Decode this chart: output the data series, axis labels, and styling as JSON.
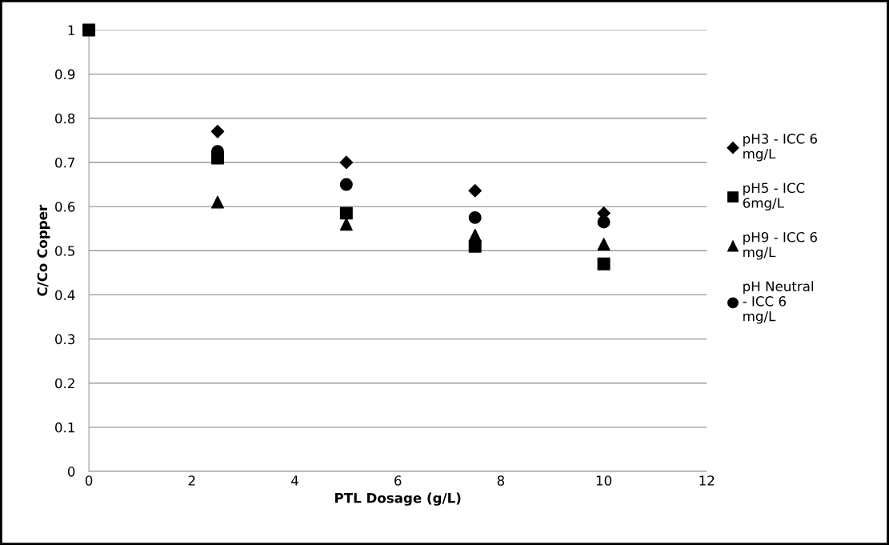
{
  "chart_data": {
    "type": "scatter",
    "xlabel": "PTL Dosage (g/L)",
    "ylabel": "C/Co Copper",
    "x": [
      0,
      2.5,
      5,
      7.5,
      10
    ],
    "series": [
      {
        "name": "pH3 - ICC 6 mg/L",
        "color": "#000000",
        "marker": "diamond",
        "values": [
          null,
          0.77,
          0.7,
          0.636,
          0.585
        ]
      },
      {
        "name": "pH5 - ICC 6mg/L",
        "color": "#000000",
        "marker": "square",
        "values": [
          1,
          0.71,
          0.585,
          0.51,
          0.47
        ]
      },
      {
        "name": "pH9 - ICC 6 mg/L",
        "color": "#000000",
        "marker": "triangle",
        "values": [
          null,
          0.61,
          0.56,
          0.535,
          0.515
        ]
      },
      {
        "name": "pH Neutral - ICC 6 mg/L",
        "color": "#000000",
        "marker": "circle",
        "values": [
          null,
          0.725,
          0.65,
          0.575,
          0.565
        ]
      }
    ],
    "xlim": [
      0,
      12
    ],
    "xticks": [
      0,
      2,
      4,
      6,
      8,
      10,
      12
    ],
    "ylim": [
      0,
      1
    ],
    "yticks": [
      0,
      0.1,
      0.2,
      0.3,
      0.4,
      0.5,
      0.6,
      0.7,
      0.8,
      0.9,
      1
    ],
    "grid": "y",
    "legend": "right"
  }
}
